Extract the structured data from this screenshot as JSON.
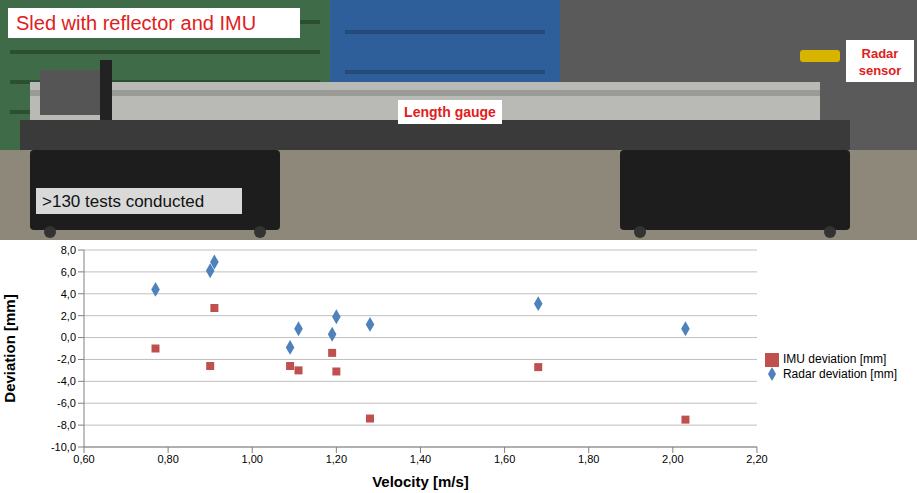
{
  "photo": {
    "labels": {
      "sled": "Sled with reflector and IMU",
      "radar": "Radar sensor",
      "gauge": "Length gauge",
      "tests": ">130 tests conducted"
    }
  },
  "chart_data": {
    "type": "scatter",
    "x_label": "Velocity [m/s]",
    "y_label": "Deviation [mm]",
    "x": [
      0.77,
      0.9,
      0.91,
      1.09,
      1.11,
      1.19,
      1.2,
      1.28,
      1.68,
      2.03
    ],
    "series": [
      {
        "name": "Radar deviation [mm]",
        "color": "#4f81bd",
        "marker": "diamond",
        "values": [
          4.4,
          6.1,
          6.9,
          -0.9,
          0.8,
          0.3,
          1.9,
          1.2,
          3.1,
          0.8
        ]
      },
      {
        "name": "IMU deviation [mm]",
        "color": "#c0504d",
        "marker": "square",
        "values": [
          -1.0,
          -2.6,
          2.7,
          -2.6,
          -3.0,
          -1.4,
          -3.1,
          -7.4,
          -2.7,
          -7.5
        ]
      }
    ],
    "xlim": [
      0.6,
      2.2
    ],
    "xticks": [
      {
        "value": 0.6,
        "label": "0,60"
      },
      {
        "value": 0.8,
        "label": "0,80"
      },
      {
        "value": 1.0,
        "label": "1,00"
      },
      {
        "value": 1.2,
        "label": "1,20"
      },
      {
        "value": 1.4,
        "label": "1,40"
      },
      {
        "value": 1.6,
        "label": "1,60"
      },
      {
        "value": 1.8,
        "label": "1,80"
      },
      {
        "value": 2.0,
        "label": "2,00"
      },
      {
        "value": 2.2,
        "label": "2,20"
      }
    ],
    "ylim": [
      -10,
      8
    ],
    "yticks": [
      {
        "value": -10,
        "label": "-10,0"
      },
      {
        "value": -8,
        "label": "-8,0"
      },
      {
        "value": -6,
        "label": "-6,0"
      },
      {
        "value": -4,
        "label": "-4,0"
      },
      {
        "value": -2,
        "label": "-2,0"
      },
      {
        "value": 0,
        "label": "0,0"
      },
      {
        "value": 2,
        "label": "2,0"
      },
      {
        "value": 4,
        "label": "4,0"
      },
      {
        "value": 6,
        "label": "6,0"
      },
      {
        "value": 8,
        "label": "8,0"
      }
    ],
    "grid": true,
    "legend": "right"
  }
}
